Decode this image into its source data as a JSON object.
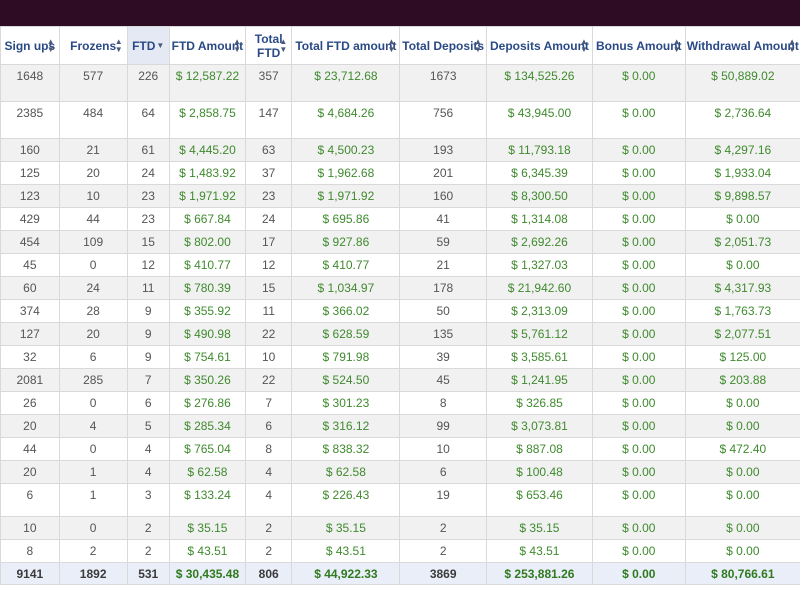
{
  "columns": [
    {
      "label": "Sign ups",
      "sort": "both",
      "name": "sign-ups"
    },
    {
      "label": "Frozens",
      "sort": "both",
      "name": "frozens"
    },
    {
      "label": "FTD",
      "sort": "desc",
      "name": "ftd"
    },
    {
      "label": "FTD Amount",
      "sort": "both",
      "name": "ftd-amount"
    },
    {
      "label": "Total FTD",
      "sort": "both",
      "name": "total-ftd"
    },
    {
      "label": "Total FTD amount",
      "sort": "both",
      "name": "total-ftd-amount"
    },
    {
      "label": "Total Deposits",
      "sort": "both",
      "name": "total-deposits"
    },
    {
      "label": "Deposits Amount",
      "sort": "both",
      "name": "deposits-amount"
    },
    {
      "label": "Bonus Amount",
      "sort": "both",
      "name": "bonus-amount"
    },
    {
      "label": "Withdrawal Amount",
      "sort": "both",
      "name": "withdrawal-amount"
    }
  ],
  "money_columns": [
    3,
    5,
    7,
    8,
    9
  ],
  "rows": [
    [
      "1648",
      "577",
      "226",
      "$ 12,587.22",
      "357",
      "$ 23,712.68",
      "1673",
      "$ 134,525.26",
      "$ 0.00",
      "$ 50,889.02"
    ],
    [
      "2385",
      "484",
      "64",
      "$ 2,858.75",
      "147",
      "$ 4,684.26",
      "756",
      "$ 43,945.00",
      "$ 0.00",
      "$ 2,736.64"
    ],
    [
      "160",
      "21",
      "61",
      "$ 4,445.20",
      "63",
      "$ 4,500.23",
      "193",
      "$ 11,793.18",
      "$ 0.00",
      "$ 4,297.16"
    ],
    [
      "125",
      "20",
      "24",
      "$ 1,483.92",
      "37",
      "$ 1,962.68",
      "201",
      "$ 6,345.39",
      "$ 0.00",
      "$ 1,933.04"
    ],
    [
      "123",
      "10",
      "23",
      "$ 1,971.92",
      "23",
      "$ 1,971.92",
      "160",
      "$ 8,300.50",
      "$ 0.00",
      "$ 9,898.57"
    ],
    [
      "429",
      "44",
      "23",
      "$ 667.84",
      "24",
      "$ 695.86",
      "41",
      "$ 1,314.08",
      "$ 0.00",
      "$ 0.00"
    ],
    [
      "454",
      "109",
      "15",
      "$ 802.00",
      "17",
      "$ 927.86",
      "59",
      "$ 2,692.26",
      "$ 0.00",
      "$ 2,051.73"
    ],
    [
      "45",
      "0",
      "12",
      "$ 410.77",
      "12",
      "$ 410.77",
      "21",
      "$ 1,327.03",
      "$ 0.00",
      "$ 0.00"
    ],
    [
      "60",
      "24",
      "11",
      "$ 780.39",
      "15",
      "$ 1,034.97",
      "178",
      "$ 21,942.60",
      "$ 0.00",
      "$ 4,317.93"
    ],
    [
      "374",
      "28",
      "9",
      "$ 355.92",
      "11",
      "$ 366.02",
      "50",
      "$ 2,313.09",
      "$ 0.00",
      "$ 1,763.73"
    ],
    [
      "127",
      "20",
      "9",
      "$ 490.98",
      "22",
      "$ 628.59",
      "135",
      "$ 5,761.12",
      "$ 0.00",
      "$ 2,077.51"
    ],
    [
      "32",
      "6",
      "9",
      "$ 754.61",
      "10",
      "$ 791.98",
      "39",
      "$ 3,585.61",
      "$ 0.00",
      "$ 125.00"
    ],
    [
      "2081",
      "285",
      "7",
      "$ 350.26",
      "22",
      "$ 524.50",
      "45",
      "$ 1,241.95",
      "$ 0.00",
      "$ 203.88"
    ],
    [
      "26",
      "0",
      "6",
      "$ 276.86",
      "7",
      "$ 301.23",
      "8",
      "$ 326.85",
      "$ 0.00",
      "$ 0.00"
    ],
    [
      "20",
      "4",
      "5",
      "$ 285.34",
      "6",
      "$ 316.12",
      "99",
      "$ 3,073.81",
      "$ 0.00",
      "$ 0.00"
    ],
    [
      "44",
      "0",
      "4",
      "$ 765.04",
      "8",
      "$ 838.32",
      "10",
      "$ 887.08",
      "$ 0.00",
      "$ 472.40"
    ],
    [
      "20",
      "1",
      "4",
      "$ 62.58",
      "4",
      "$ 62.58",
      "6",
      "$ 100.48",
      "$ 0.00",
      "$ 0.00"
    ],
    [
      "6",
      "1",
      "3",
      "$ 133.24",
      "4",
      "$ 226.43",
      "19",
      "$ 653.46",
      "$ 0.00",
      "$ 0.00"
    ],
    [
      "10",
      "0",
      "2",
      "$ 35.15",
      "2",
      "$ 35.15",
      "2",
      "$ 35.15",
      "$ 0.00",
      "$ 0.00"
    ],
    [
      "8",
      "2",
      "2",
      "$ 43.51",
      "2",
      "$ 43.51",
      "2",
      "$ 43.51",
      "$ 0.00",
      "$ 0.00"
    ]
  ],
  "totals": [
    "9141",
    "1892",
    "531",
    "$ 30,435.48",
    "806",
    "$ 44,922.33",
    "3869",
    "$ 253,881.26",
    "$ 0.00",
    "$ 80,766.61"
  ],
  "colors": {
    "topbar": "#2e0d24",
    "header_text": "#2a4a86",
    "money_text": "#3f8a2e",
    "row_alt": "#f1f1f1",
    "totals_bg": "#eaeef8"
  }
}
